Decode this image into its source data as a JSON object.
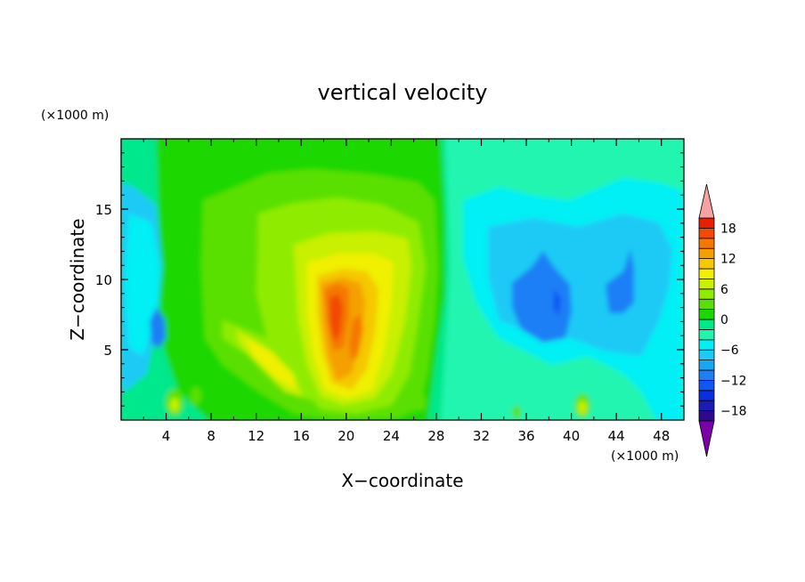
{
  "chart_data": {
    "type": "heatmap",
    "title": "vertical velocity",
    "xlabel": "X−coordinate",
    "ylabel": "Z−coordinate",
    "x_units": "(×1000 m)",
    "y_units": "(×1000 m)",
    "xlim": [
      0,
      50
    ],
    "ylim": [
      0,
      20
    ],
    "x_ticks": [
      4,
      8,
      12,
      16,
      20,
      24,
      28,
      32,
      36,
      40,
      44,
      48
    ],
    "y_ticks": [
      5,
      10,
      15
    ],
    "colorbar": {
      "levels": [
        -20,
        -18,
        -16,
        -14,
        -12,
        -10,
        -8,
        -6,
        -4,
        -2,
        0,
        2,
        4,
        6,
        8,
        10,
        12,
        14,
        16,
        18,
        20
      ],
      "tick_labels": [
        18,
        12,
        6,
        0,
        -6,
        -12,
        -18
      ],
      "colors": [
        "#7a00a8",
        "#2c0a8c",
        "#1b1bb5",
        "#0a2ee0",
        "#1155f5",
        "#1e7ff5",
        "#19a8f0",
        "#1ecaf5",
        "#00f0f5",
        "#20f5b0",
        "#00e88c",
        "#1bd800",
        "#5ae000",
        "#8fec00",
        "#c8f000",
        "#f0f000",
        "#f5c800",
        "#f5a000",
        "#f57800",
        "#f24a00",
        "#e82000",
        "#f4a2a2"
      ],
      "extend": "both"
    },
    "features": [
      {
        "name": "updraft",
        "x": 19,
        "z": 8,
        "value": 16
      },
      {
        "name": "updraft",
        "x": 20.5,
        "z": 6,
        "value": 14
      },
      {
        "name": "updraft",
        "x": 14,
        "z": 4,
        "value": 8
      },
      {
        "name": "downdraft",
        "x": 38.5,
        "z": 9,
        "value": -10
      },
      {
        "name": "downdraft",
        "x": 44,
        "z": 9,
        "value": -8
      },
      {
        "name": "downdraft",
        "x": 3.5,
        "z": 6,
        "value": -8
      },
      {
        "name": "updraft",
        "x": 41,
        "z": 1,
        "value": 6
      },
      {
        "name": "updraft",
        "x": 5,
        "z": 1.3,
        "value": 6
      }
    ]
  }
}
